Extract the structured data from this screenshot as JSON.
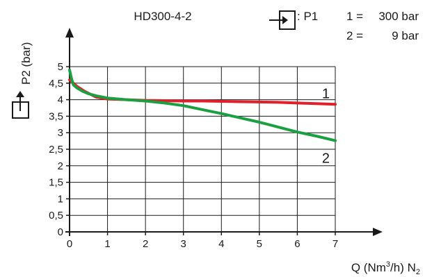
{
  "chart_data": {
    "type": "line",
    "title": "HD300-4-2",
    "inlet_label": ": P1",
    "pressure_legend": [
      {
        "key": "1 =",
        "value": "300 bar"
      },
      {
        "key": "2 =",
        "value": "9 bar"
      }
    ],
    "ylabel": "P2 (bar)",
    "xlabel_main": "Q (Nm",
    "xlabel_sup": "3",
    "xlabel_mid": "/h) N",
    "xlabel_sub": "2",
    "xlim": [
      0,
      7
    ],
    "ylim": [
      0,
      5
    ],
    "x_ticks": [
      "0",
      "1",
      "2",
      "3",
      "4",
      "5",
      "6",
      "7"
    ],
    "y_ticks": [
      "0",
      "0,5",
      "1",
      "1,5",
      "2",
      "2,5",
      "3",
      "3,5",
      "4",
      "4,5",
      "5"
    ],
    "grid": true,
    "series": [
      {
        "name": "1",
        "color": "#e0202a",
        "x": [
          0,
          0.1,
          0.2,
          0.4,
          0.7,
          1,
          1.5,
          2,
          2.5,
          3,
          3.5,
          4,
          4.5,
          5,
          5.5,
          6,
          6.5,
          7
        ],
        "y": [
          4.6,
          4.5,
          4.4,
          4.25,
          4.08,
          4.02,
          4.0,
          3.98,
          3.97,
          3.96,
          3.96,
          3.95,
          3.94,
          3.93,
          3.92,
          3.9,
          3.88,
          3.86
        ]
      },
      {
        "name": "2",
        "color": "#1aa040",
        "x": [
          0,
          0.05,
          0.1,
          0.2,
          0.35,
          0.5,
          0.7,
          1,
          1.5,
          2,
          2.5,
          3,
          3.5,
          4,
          4.5,
          5,
          5.5,
          6,
          6.5,
          7
        ],
        "y": [
          4.9,
          4.65,
          4.45,
          4.35,
          4.25,
          4.18,
          4.12,
          4.05,
          4.0,
          3.96,
          3.9,
          3.82,
          3.7,
          3.58,
          3.45,
          3.32,
          3.17,
          3.02,
          2.9,
          2.76
        ]
      }
    ]
  }
}
